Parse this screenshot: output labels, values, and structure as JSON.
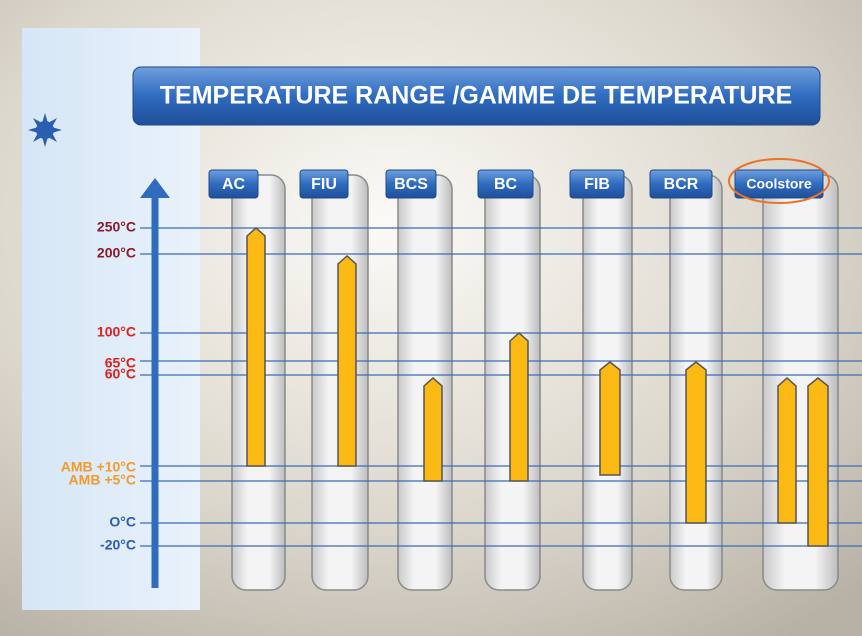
{
  "title": "TEMPERATURE RANGE /GAMME DE TEMPERATURE",
  "levels": [
    "250°C",
    "200°C",
    "100°C",
    "65°C",
    "60°C",
    "AMB +10°C",
    "AMB +5°C",
    "O°C",
    "-20°C"
  ],
  "columns": [
    "AC",
    "FIU",
    "BCS",
    "BC",
    "FIB",
    "BCR",
    "Coolstore"
  ]
}
